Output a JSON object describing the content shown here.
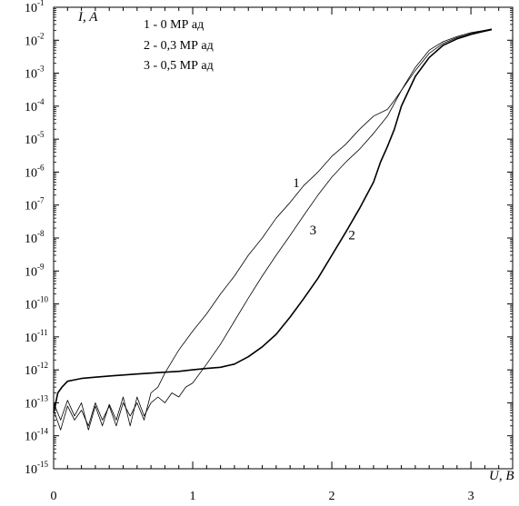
{
  "chart_data": {
    "type": "line",
    "y_scale": "log",
    "xlim": [
      0,
      3.3
    ],
    "ylim_exponent": [
      -15,
      -1
    ],
    "x_ticks": [
      "0",
      "1",
      "2",
      "3"
    ],
    "y_tick_exponents": [
      -1,
      -2,
      -3,
      -4,
      -5,
      -6,
      -7,
      -8,
      -9,
      -10,
      -11,
      -12,
      -13,
      -14,
      -15
    ],
    "y_tick_base": "10",
    "ylabel": "I, A",
    "xlabel": "U, B",
    "legend": [
      "1 - 0 МР ад",
      "2 - 0,3 МР ад",
      "3 - 0,5 МР ад"
    ],
    "series": [
      {
        "name": "1",
        "label": "1",
        "label_at": [
          1.72,
          3.5e-07
        ],
        "style": "thin",
        "points": [
          [
            0,
            6e-14
          ],
          [
            0.05,
            1.5e-14
          ],
          [
            0.1,
            8e-14
          ],
          [
            0.15,
            3e-14
          ],
          [
            0.2,
            6e-14
          ],
          [
            0.25,
            2e-14
          ],
          [
            0.3,
            1e-13
          ],
          [
            0.35,
            3e-14
          ],
          [
            0.4,
            8e-14
          ],
          [
            0.45,
            2e-14
          ],
          [
            0.5,
            1e-13
          ],
          [
            0.55,
            4e-14
          ],
          [
            0.6,
            1e-13
          ],
          [
            0.65,
            3e-14
          ],
          [
            0.7,
            2e-13
          ],
          [
            0.75,
            3e-13
          ],
          [
            0.8,
            8e-13
          ],
          [
            0.9,
            4e-12
          ],
          [
            1.0,
            1.5e-11
          ],
          [
            1.1,
            5e-11
          ],
          [
            1.2,
            2e-10
          ],
          [
            1.3,
            7e-10
          ],
          [
            1.4,
            3e-09
          ],
          [
            1.5,
            1e-08
          ],
          [
            1.6,
            4e-08
          ],
          [
            1.7,
            1.2e-07
          ],
          [
            1.8,
            4e-07
          ],
          [
            1.9,
            1e-06
          ],
          [
            2.0,
            3e-06
          ],
          [
            2.1,
            7e-06
          ],
          [
            2.2,
            2e-05
          ],
          [
            2.3,
            5e-05
          ],
          [
            2.4,
            8e-05
          ],
          [
            2.45,
            0.00015
          ],
          [
            2.5,
            0.0003
          ],
          [
            2.6,
            0.0012
          ],
          [
            2.7,
            0.004
          ],
          [
            2.8,
            0.008
          ],
          [
            2.9,
            0.012
          ],
          [
            3.0,
            0.016
          ],
          [
            3.1,
            0.02
          ],
          [
            3.15,
            0.022
          ]
        ]
      },
      {
        "name": "2",
        "label": "2",
        "label_at": [
          2.12,
          9e-09
        ],
        "style": "thick",
        "points": [
          [
            0,
            5e-14
          ],
          [
            0.03,
            2e-13
          ],
          [
            0.06,
            3e-13
          ],
          [
            0.1,
            4.5e-13
          ],
          [
            0.15,
            5e-13
          ],
          [
            0.2,
            5.5e-13
          ],
          [
            0.3,
            6e-13
          ],
          [
            0.4,
            6.5e-13
          ],
          [
            0.5,
            7e-13
          ],
          [
            0.6,
            7.5e-13
          ],
          [
            0.7,
            8e-13
          ],
          [
            0.8,
            8.5e-13
          ],
          [
            0.9,
            9e-13
          ],
          [
            1.0,
            1e-12
          ],
          [
            1.1,
            1.1e-12
          ],
          [
            1.2,
            1.2e-12
          ],
          [
            1.3,
            1.5e-12
          ],
          [
            1.4,
            2.5e-12
          ],
          [
            1.5,
            5e-12
          ],
          [
            1.6,
            1.2e-11
          ],
          [
            1.7,
            4e-11
          ],
          [
            1.8,
            1.5e-10
          ],
          [
            1.9,
            6e-10
          ],
          [
            2.0,
            3e-09
          ],
          [
            2.1,
            1.5e-08
          ],
          [
            2.2,
            8e-08
          ],
          [
            2.3,
            5e-07
          ],
          [
            2.35,
            2e-06
          ],
          [
            2.4,
            6e-06
          ],
          [
            2.45,
            2e-05
          ],
          [
            2.5,
            0.0001
          ],
          [
            2.6,
            0.0008
          ],
          [
            2.7,
            0.003
          ],
          [
            2.8,
            0.007
          ],
          [
            2.9,
            0.011
          ],
          [
            3.0,
            0.015
          ],
          [
            3.1,
            0.019
          ],
          [
            3.15,
            0.021
          ]
        ]
      },
      {
        "name": "3",
        "label": "3",
        "label_at": [
          1.84,
          1.3e-08
        ],
        "style": "thin",
        "points": [
          [
            0,
            1e-13
          ],
          [
            0.05,
            3e-14
          ],
          [
            0.1,
            1.2e-13
          ],
          [
            0.15,
            4e-14
          ],
          [
            0.2,
            1e-13
          ],
          [
            0.25,
            1.5e-14
          ],
          [
            0.3,
            8e-14
          ],
          [
            0.35,
            2e-14
          ],
          [
            0.4,
            9e-14
          ],
          [
            0.45,
            3e-14
          ],
          [
            0.5,
            1.5e-13
          ],
          [
            0.55,
            2e-14
          ],
          [
            0.6,
            1.5e-13
          ],
          [
            0.65,
            4e-14
          ],
          [
            0.7,
            1e-13
          ],
          [
            0.75,
            1.5e-13
          ],
          [
            0.8,
            1e-13
          ],
          [
            0.85,
            2e-13
          ],
          [
            0.9,
            1.5e-13
          ],
          [
            0.95,
            3e-13
          ],
          [
            1.0,
            4e-13
          ],
          [
            1.1,
            1.5e-12
          ],
          [
            1.2,
            6e-12
          ],
          [
            1.3,
            3e-11
          ],
          [
            1.4,
            1.5e-10
          ],
          [
            1.5,
            7e-10
          ],
          [
            1.6,
            3e-09
          ],
          [
            1.7,
            1.2e-08
          ],
          [
            1.8,
            5e-08
          ],
          [
            1.9,
            2e-07
          ],
          [
            2.0,
            7e-07
          ],
          [
            2.1,
            2e-06
          ],
          [
            2.2,
            5e-06
          ],
          [
            2.3,
            1.5e-05
          ],
          [
            2.4,
            5e-05
          ],
          [
            2.5,
            0.0003
          ],
          [
            2.6,
            0.0015
          ],
          [
            2.7,
            0.005
          ],
          [
            2.8,
            0.009
          ],
          [
            2.9,
            0.013
          ],
          [
            3.0,
            0.017
          ],
          [
            3.1,
            0.02
          ],
          [
            3.15,
            0.022
          ]
        ]
      }
    ]
  },
  "colors": {
    "line": "#000000",
    "background": "#ffffff"
  }
}
